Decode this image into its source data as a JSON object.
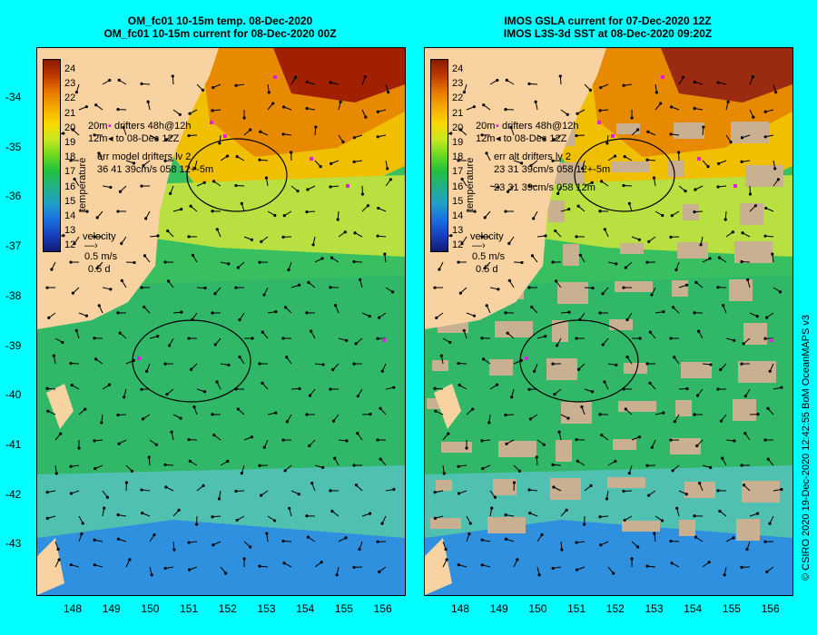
{
  "panels": [
    {
      "title_line1": "OM_fc01 10-15m temp. 08-Dec-2020",
      "title_line2": "OM_fc01 10-15m current for 08-Dec-2020 00Z",
      "legend_line1": "drifters 48h@12h",
      "legend_line2": "to 08-Dec 12Z",
      "err_line1": "err model drifters lv 2",
      "err_line2": "36 41 39cm/s 058 12+-5m",
      "err_line3": "",
      "velocity_label": "velocity",
      "velocity_scale": "0.5 m/s",
      "velocity_time": "0.5 d",
      "depth_a": "20m",
      "depth_b": "12m"
    },
    {
      "title_line1": "IMOS GSLA current for 07-Dec-2020 12Z",
      "title_line2": "IMOS L3S-3d SST at 08-Dec-2020 09:20Z",
      "legend_line1": "drifters 48h@12h",
      "legend_line2": "to 08-Dec 12Z",
      "err_line1": "err alt drifters lv 2",
      "err_line2": "23 31 39cm/s 058 12+-5m",
      "err_line3": "23 31 39cm/s 058 12m",
      "velocity_label": "velocity",
      "velocity_scale": "0.5 m/s",
      "velocity_time": "0.5 d",
      "depth_a": "20m",
      "depth_b": "12m"
    }
  ],
  "colorbar": {
    "title": "temperature",
    "labels": [
      "24",
      "23",
      "22",
      "21",
      "20",
      "19",
      "18",
      "17",
      "16",
      "15",
      "14",
      "13",
      "12"
    ],
    "colors": [
      "#8b1a00",
      "#c03a00",
      "#e87800",
      "#f5aa00",
      "#f8d800",
      "#c8e820",
      "#68d820",
      "#20c040",
      "#20b088",
      "#20a0c8",
      "#1870e0",
      "#1840c0",
      "#101870"
    ]
  },
  "y_ticks": [
    "-34",
    "-35",
    "-36",
    "-37",
    "-38",
    "-39",
    "-40",
    "-41",
    "-42",
    "-43"
  ],
  "x_ticks": [
    "148",
    "149",
    "150",
    "151",
    "152",
    "153",
    "154",
    "155",
    "156"
  ],
  "credit": "© CSIRO 2020  19-Dec-2020 12:42:55 BoM OceanMAPS v3"
}
